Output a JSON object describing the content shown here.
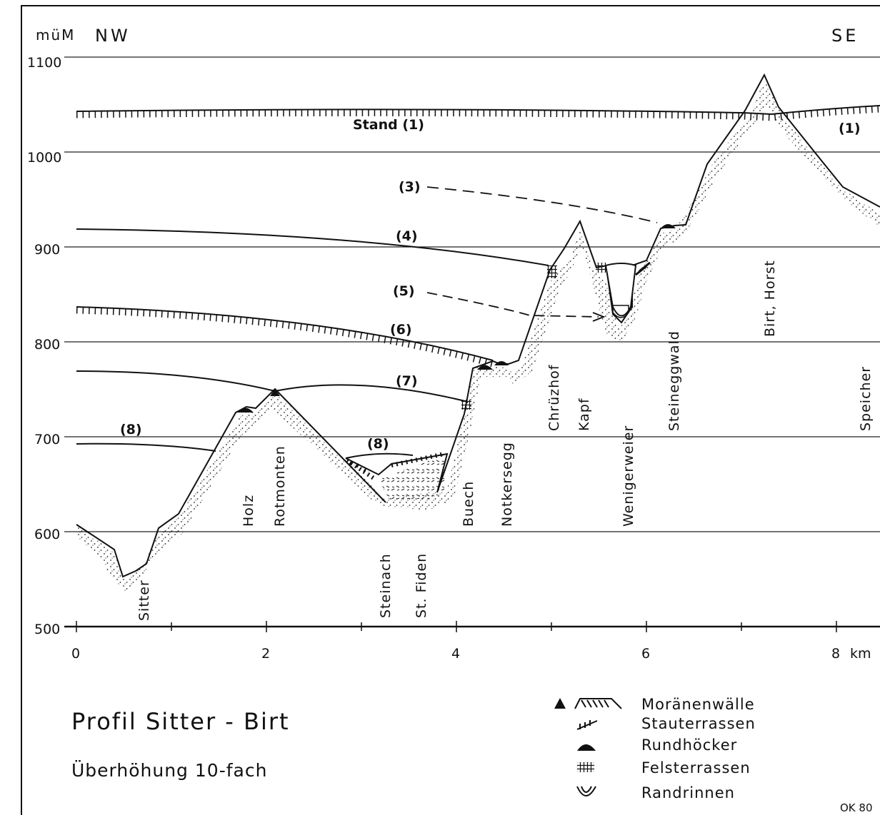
{
  "figure": {
    "y_axis_unit": "müM",
    "x_axis_unit": "km",
    "direction_left": "NW",
    "direction_right": "SE",
    "title": "Profil  Sitter - Birt",
    "subtitle": "Überhöhung  10-fach",
    "credit": "OK 80"
  },
  "y_ticks": [
    "1100",
    "1000",
    "900",
    "800",
    "700",
    "600",
    "500"
  ],
  "x_ticks": [
    "0",
    "2",
    "4",
    "6",
    "8"
  ],
  "levels": {
    "stand": "Stand (1)",
    "stand_right": "(1)",
    "l3": "(3)",
    "l4": "(4)",
    "l5": "(5)",
    "l6": "(6)",
    "l7": "(7)",
    "l8": "(8)",
    "l8_valley": "(8)"
  },
  "places": {
    "sitter": "Sitter",
    "holz": "Holz",
    "rotmonten": "Rotmonten",
    "steinach": "Steinach",
    "stfiden": "St. Fiden",
    "buech": "Buech",
    "notkersegg": "Notkersegg",
    "chruzhof": "Chrüzhof",
    "kapf": "Kapf",
    "wenigerweier": "Wenigerweier",
    "steineggwald": "Steineggwald",
    "birt": "Birt, Horst",
    "speicher": "Speicher"
  },
  "legend": {
    "moraines": "Moränenwälle",
    "stauterrassen": "Stauterrassen",
    "rundhoecker": "Rundhöcker",
    "felsterrassen": "Felsterrassen",
    "randrinnen": "Randrinnen"
  }
}
